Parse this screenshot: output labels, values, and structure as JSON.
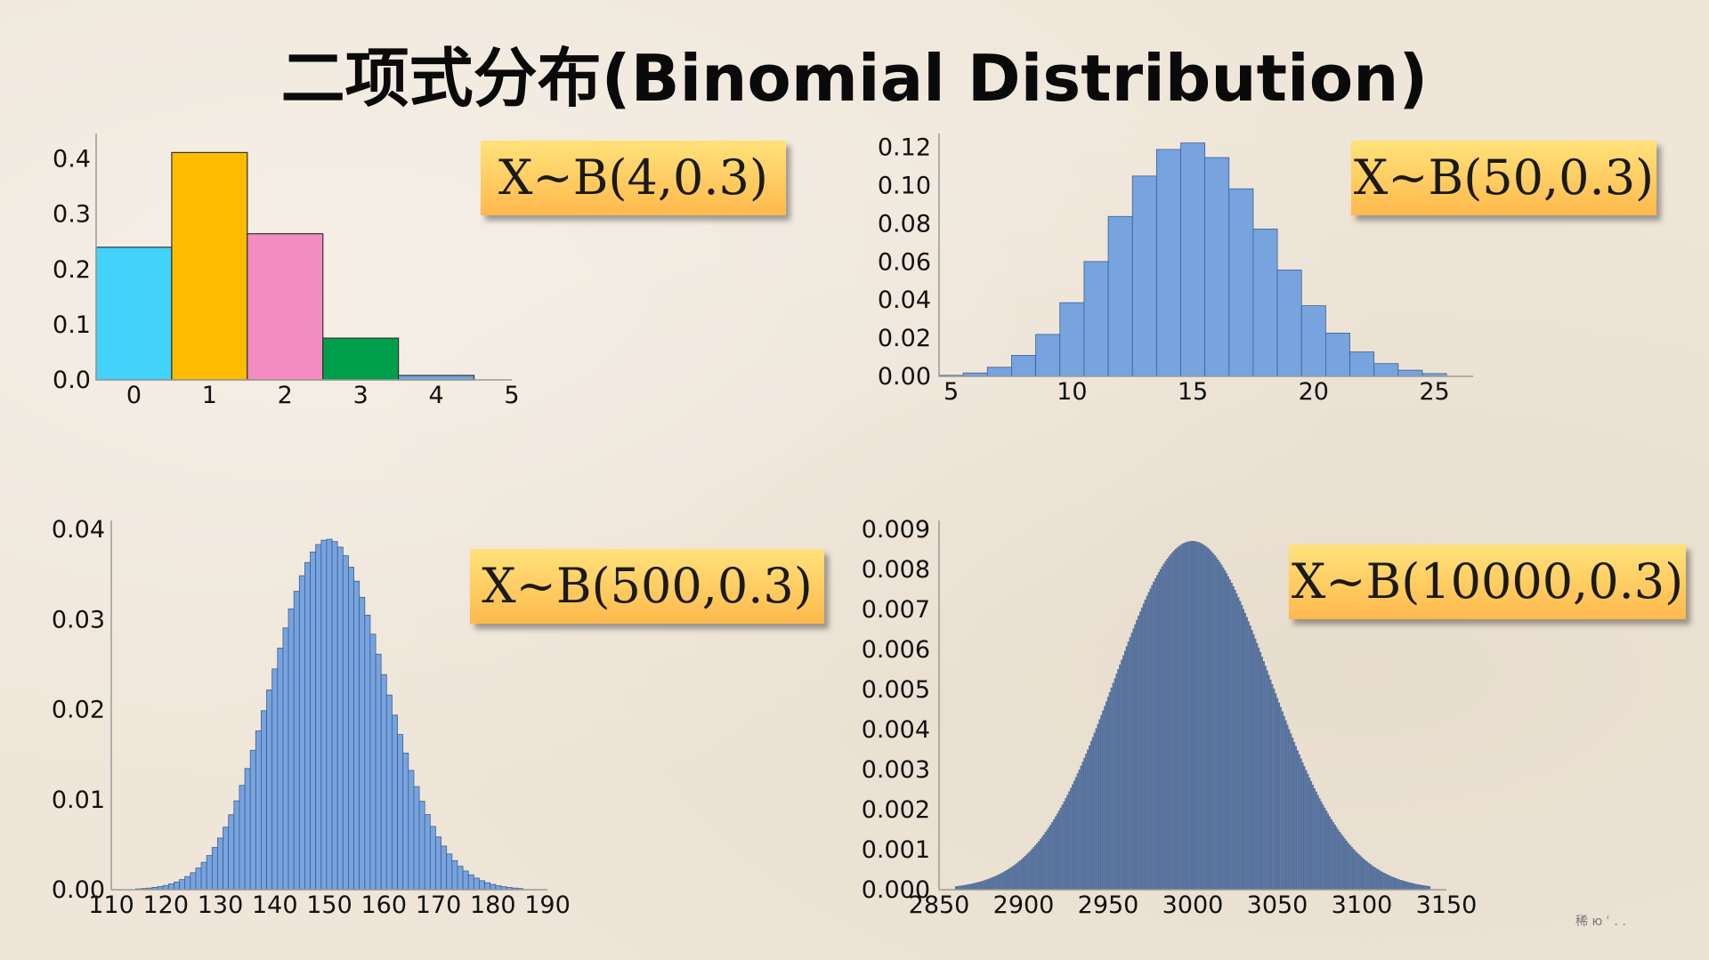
{
  "title": "二项式分布(Binomial Distribution)",
  "watermark": "稀 ю  ʿ . .",
  "colors": {
    "bar_blue": "#77a3df",
    "bar_dark": "#5e7ba8",
    "bar_cyan": "#41d3fa",
    "bar_orange": "#ffbb00",
    "bar_pink": "#f48cc2",
    "bar_green": "#009f4c",
    "bar_light_blue": "#77a3df"
  },
  "chart_data": [
    {
      "type": "bar",
      "formula": "X~B(4,0.3)",
      "x": [
        0,
        1,
        2,
        3,
        4
      ],
      "values": [
        0.2401,
        0.4116,
        0.2646,
        0.0756,
        0.0081
      ],
      "bar_colors": [
        "#41d3fa",
        "#ffbb00",
        "#f48cc2",
        "#009f4c",
        "#77a3df"
      ],
      "xlim": [
        -0.5,
        5
      ],
      "ylim": [
        0,
        0.43
      ],
      "xticks": [
        0,
        1,
        2,
        3,
        4,
        5
      ],
      "yticks": [
        "0.0",
        "0.1",
        "0.2",
        "0.3",
        "0.4"
      ],
      "ytick_values": [
        0,
        0.1,
        0.2,
        0.3,
        0.4
      ]
    },
    {
      "type": "bar",
      "formula": "X~B(50,0.3)",
      "n": 50,
      "p": 0.3,
      "x_range": [
        5,
        25
      ],
      "xlim": [
        4.5,
        26.6
      ],
      "ylim": [
        0,
        0.125
      ],
      "xticks": [
        5,
        10,
        15,
        20,
        25
      ],
      "yticks": [
        "0.00",
        "0.02",
        "0.04",
        "0.06",
        "0.08",
        "0.10",
        "0.12"
      ],
      "ytick_values": [
        0,
        0.02,
        0.04,
        0.06,
        0.08,
        0.1,
        0.12
      ],
      "bar_color": "#77a3df"
    },
    {
      "type": "bar",
      "formula": "X~B(500,0.3)",
      "n": 500,
      "p": 0.3,
      "x_range": [
        115,
        185
      ],
      "xlim": [
        110,
        190
      ],
      "ylim": [
        0,
        0.04
      ],
      "xticks": [
        110,
        120,
        130,
        140,
        150,
        160,
        170,
        180,
        190
      ],
      "yticks": [
        "0.00",
        "0.01",
        "0.02",
        "0.03",
        "0.04"
      ],
      "ytick_values": [
        0,
        0.01,
        0.02,
        0.03,
        0.04
      ],
      "bar_color": "#77a3df"
    },
    {
      "type": "bar",
      "formula": "X~B(10000,0.3)",
      "n": 10000,
      "p": 0.3,
      "x_range": [
        2860,
        3140
      ],
      "xlim": [
        2850,
        3150
      ],
      "ylim": [
        0,
        0.009
      ],
      "xticks": [
        2850,
        2900,
        2950,
        3000,
        3050,
        3100,
        3150
      ],
      "yticks": [
        "0.000",
        "0.001",
        "0.002",
        "0.003",
        "0.004",
        "0.005",
        "0.006",
        "0.007",
        "0.008",
        "0.009"
      ],
      "ytick_values": [
        0,
        0.001,
        0.002,
        0.003,
        0.004,
        0.005,
        0.006,
        0.007,
        0.008,
        0.009
      ],
      "bar_color": "#5e7ba8"
    }
  ]
}
